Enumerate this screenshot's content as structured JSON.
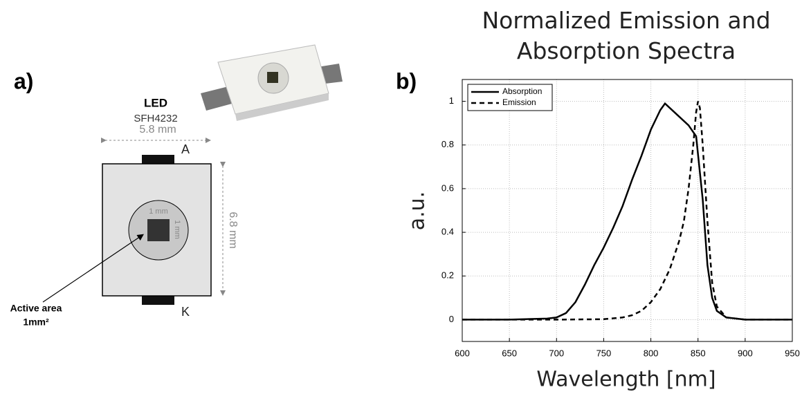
{
  "diagram": {
    "panel_label": "a)",
    "led_label": "LED",
    "led_model": "SFH4232",
    "width": "5.8 mm",
    "anode": "A",
    "height": "6.8 mm",
    "chip_width": "1 mm",
    "chip_height": "1 mm",
    "cathode": "K",
    "active_area": [
      "Active area",
      "1mm²"
    ]
  },
  "chart_data": {
    "type": "line",
    "panel_label": "b)",
    "title": "Normalized Emission and Absorption Spectra",
    "x_label": "Wavelength [nm]",
    "y_label": "a.u.",
    "xlim": [
      600,
      950
    ],
    "xticks": [
      600,
      650,
      700,
      750,
      800,
      850,
      900,
      950
    ],
    "ylim": [
      -0.1,
      1.1
    ],
    "yticks": [
      0,
      0.2,
      0.4,
      0.6,
      0.8,
      1
    ],
    "grid": true,
    "legend": "upper left",
    "series": [
      {
        "name": "Absorption",
        "color": "#000000",
        "dash": "solid",
        "x": [
          600,
          650,
          690,
          700,
          710,
          720,
          730,
          740,
          750,
          760,
          770,
          780,
          790,
          800,
          810,
          815,
          820,
          830,
          840,
          848,
          855,
          860,
          865,
          870,
          880,
          900,
          950
        ],
        "values": [
          0,
          0,
          0.005,
          0.01,
          0.03,
          0.08,
          0.16,
          0.25,
          0.33,
          0.42,
          0.52,
          0.64,
          0.75,
          0.87,
          0.96,
          0.99,
          0.97,
          0.93,
          0.89,
          0.84,
          0.55,
          0.25,
          0.1,
          0.04,
          0.01,
          0,
          0
        ]
      },
      {
        "name": "Emission",
        "color": "#000000",
        "dash": "dashed",
        "x": [
          600,
          700,
          750,
          770,
          780,
          790,
          800,
          810,
          820,
          830,
          835,
          840,
          845,
          848,
          850,
          852,
          855,
          860,
          865,
          870,
          880,
          900,
          950
        ],
        "values": [
          0,
          0,
          0.002,
          0.01,
          0.02,
          0.04,
          0.08,
          0.14,
          0.23,
          0.36,
          0.45,
          0.6,
          0.8,
          0.95,
          1.0,
          0.97,
          0.8,
          0.45,
          0.17,
          0.06,
          0.01,
          0,
          0
        ]
      }
    ]
  }
}
